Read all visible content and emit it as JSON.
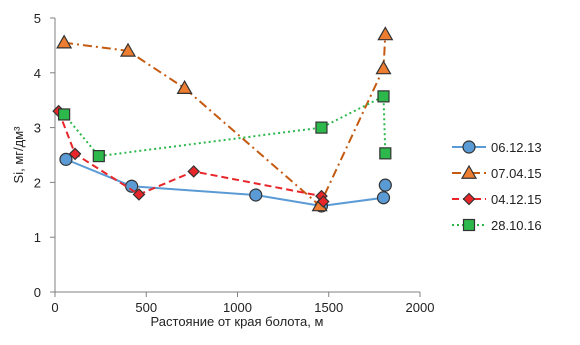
{
  "chart_data": {
    "type": "scatter",
    "xlabel": "Растояние от края болота, м",
    "ylabel": "Si, мг/дм³",
    "xlim": [
      0,
      2000
    ],
    "ylim": [
      0,
      5
    ],
    "x_ticks": [
      "0",
      "500",
      "1000",
      "1500",
      "2000"
    ],
    "y_ticks": [
      "0",
      "1",
      "2",
      "3",
      "4",
      "5"
    ],
    "grid": false,
    "legend_position": "right",
    "series": [
      {
        "name": "06.12.13",
        "color": "#5B9BD5",
        "marker": "circle",
        "line_style": "solid",
        "points": [
          [
            60,
            2.42
          ],
          [
            420,
            1.93
          ],
          [
            1100,
            1.77
          ],
          [
            1460,
            1.57
          ],
          [
            1800,
            1.72
          ],
          [
            1810,
            1.95
          ]
        ]
      },
      {
        "name": "07.04.15",
        "color": "#C55A11",
        "marker_fill": "#ED7D31",
        "marker": "triangle",
        "line_style": "dash-dot",
        "points": [
          [
            50,
            4.55
          ],
          [
            400,
            4.4
          ],
          [
            710,
            3.72
          ],
          [
            1450,
            1.58
          ],
          [
            1800,
            4.08
          ],
          [
            1810,
            4.7
          ]
        ]
      },
      {
        "name": "04.12.15",
        "color": "#E8262A",
        "marker": "diamond",
        "line_style": "dashed",
        "points": [
          [
            20,
            3.3
          ],
          [
            110,
            2.52
          ],
          [
            460,
            1.78
          ],
          [
            760,
            2.2
          ],
          [
            1460,
            1.75
          ],
          [
            1470,
            1.65
          ]
        ]
      },
      {
        "name": "28.10.16",
        "color": "#2DB84B",
        "marker": "square",
        "line_style": "dotted",
        "points": [
          [
            50,
            3.24
          ],
          [
            240,
            2.48
          ],
          [
            1460,
            3.0
          ],
          [
            1800,
            3.57
          ],
          [
            1810,
            2.53
          ]
        ]
      }
    ]
  }
}
